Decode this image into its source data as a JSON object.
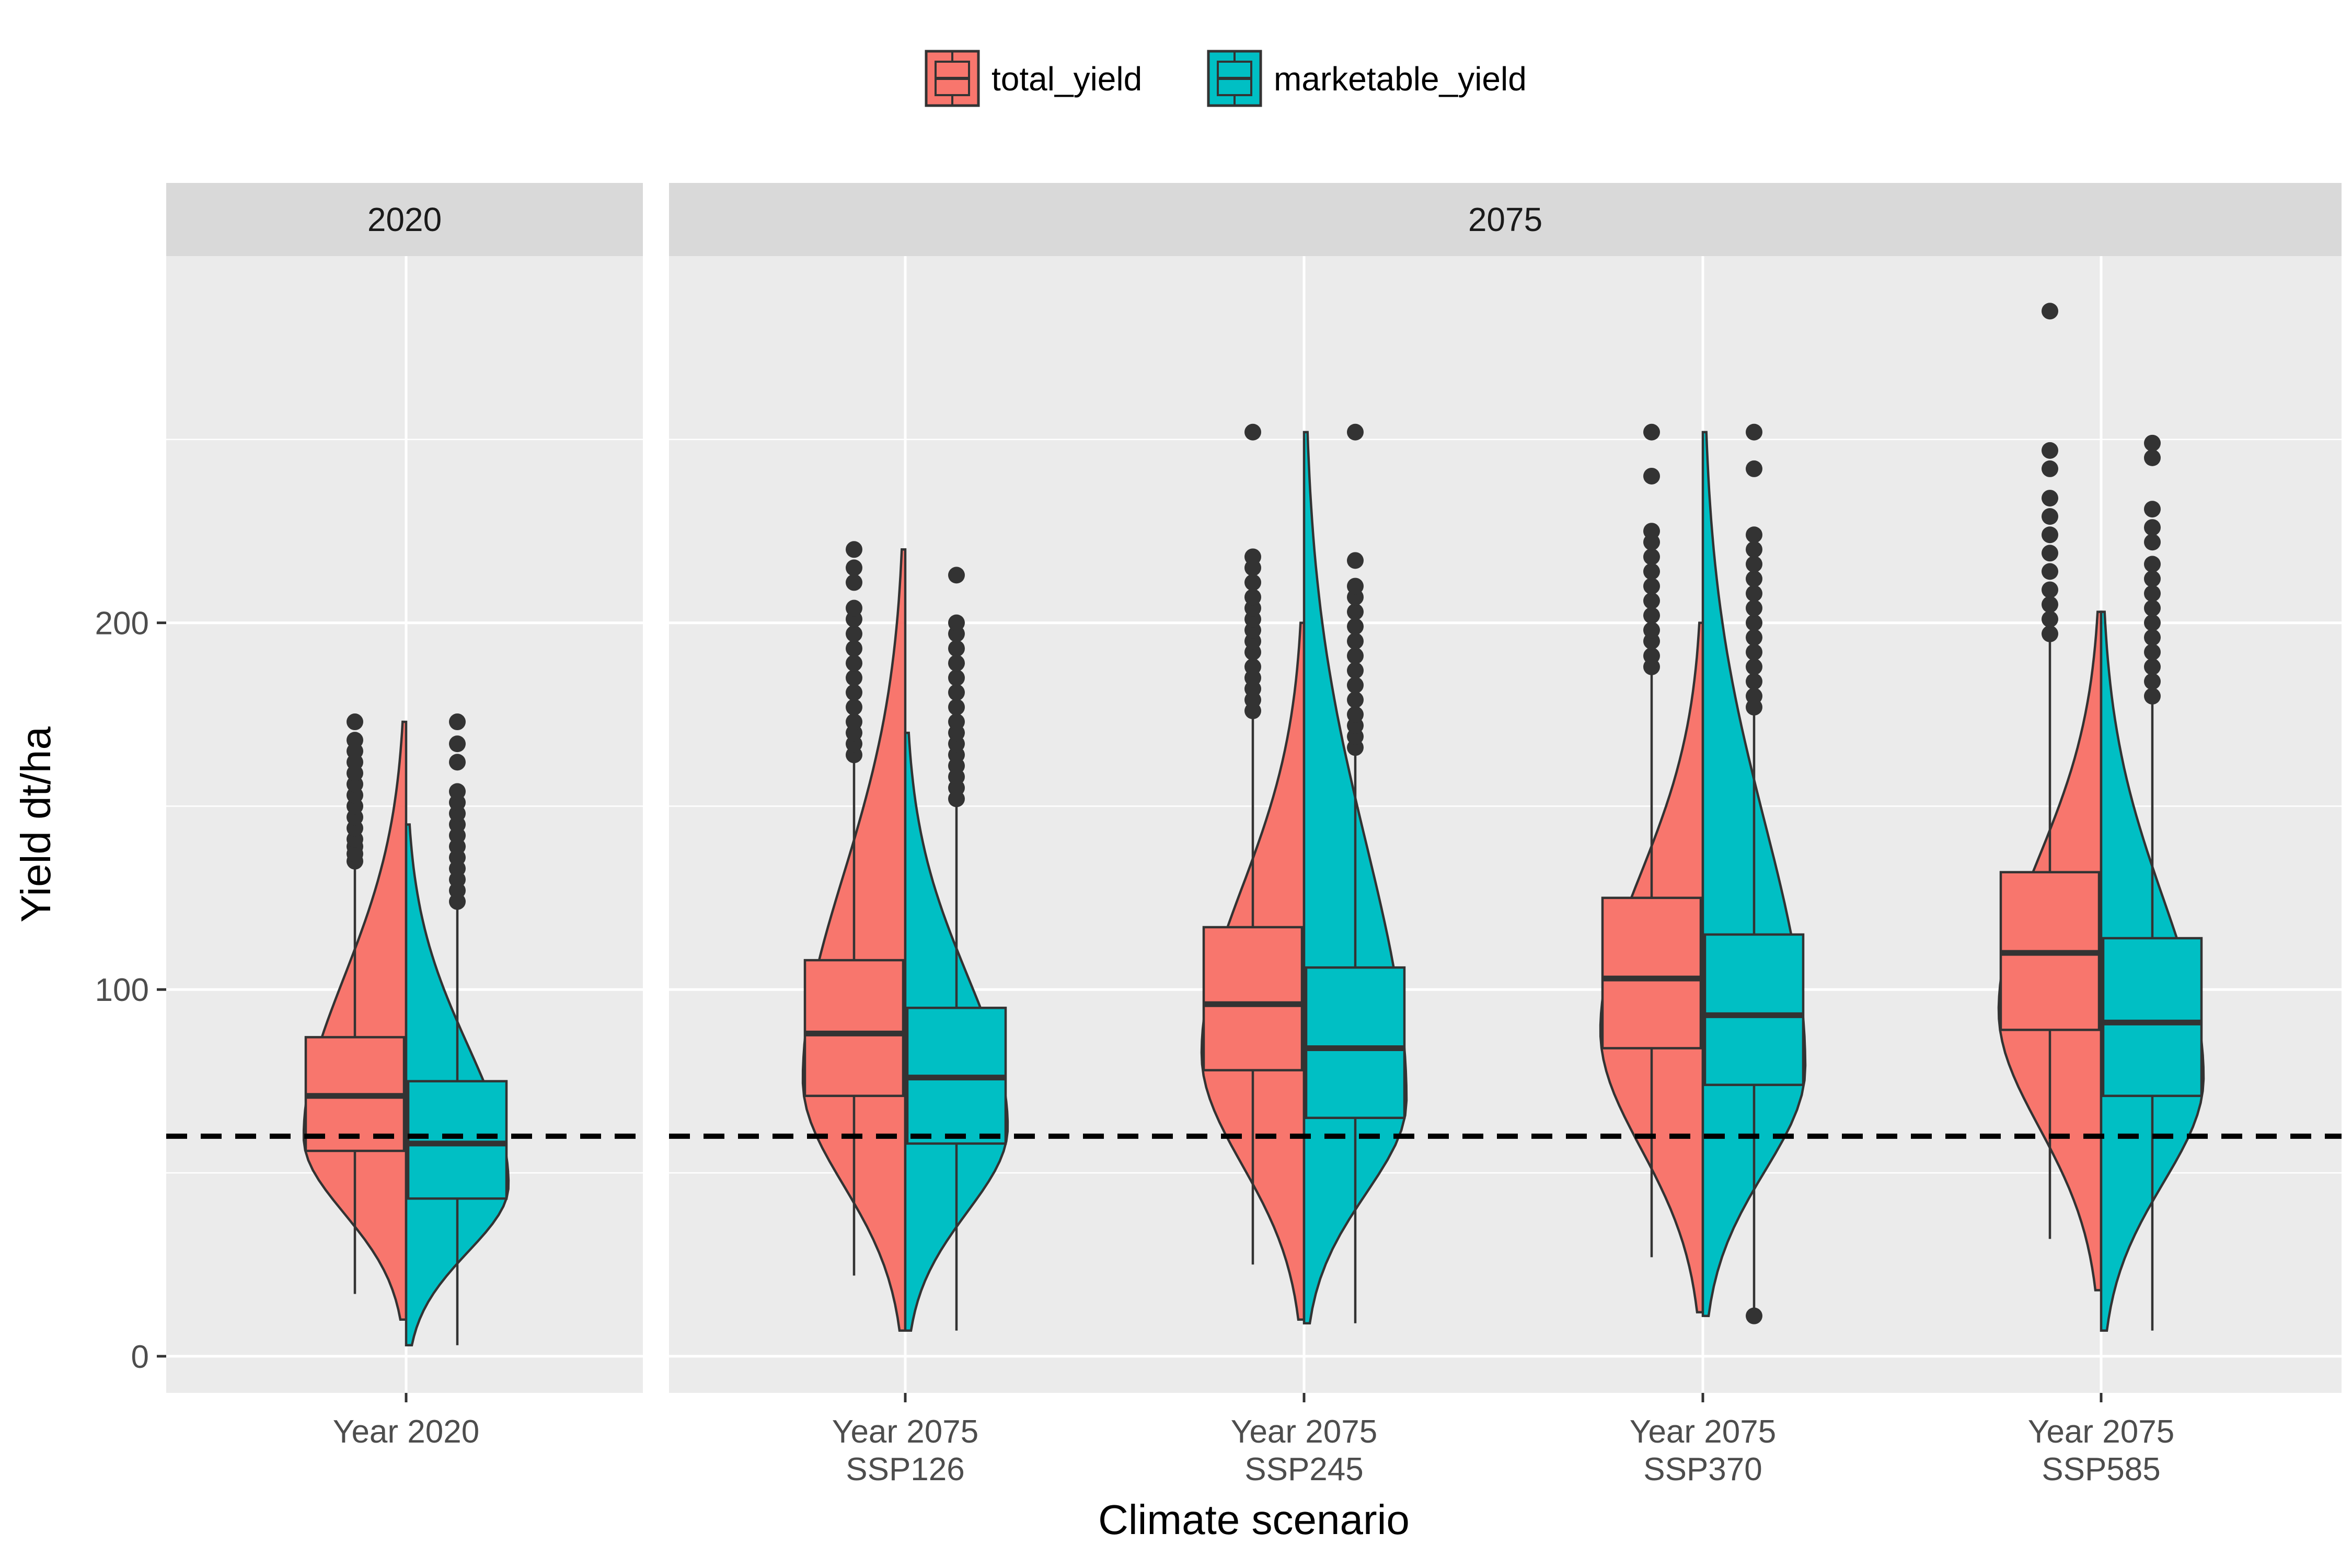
{
  "chart_data": {
    "type": "violin",
    "title": "",
    "xlabel": "Climate scenario",
    "ylabel": "Yield dt/ha",
    "ylim": [
      -10,
      300
    ],
    "yticks": [
      0,
      100,
      200
    ],
    "grid": true,
    "legend": {
      "position": "top",
      "entries": [
        {
          "name": "total_yield",
          "color": "#F8766D"
        },
        {
          "name": "marketable_yield",
          "color": "#00BFC4"
        }
      ]
    },
    "reference_line": {
      "y": 60,
      "style": "dashed",
      "color": "#000000"
    },
    "facets": [
      {
        "label": "2020",
        "categories": [
          "Year 2020"
        ]
      },
      {
        "label": "2075",
        "categories": [
          "Year 2075 SSP126",
          "Year 2075 SSP245",
          "Year 2075 SSP370",
          "Year 2075 SSP585"
        ]
      }
    ],
    "categories": [
      {
        "name": "Year 2020",
        "lines": [
          "Year 2020"
        ],
        "facet": 0
      },
      {
        "name": "Year 2075 SSP126",
        "lines": [
          "Year 2075",
          "SSP126"
        ],
        "facet": 1
      },
      {
        "name": "Year 2075 SSP245",
        "lines": [
          "Year 2075",
          "SSP245"
        ],
        "facet": 1
      },
      {
        "name": "Year 2075 SSP370",
        "lines": [
          "Year 2075",
          "SSP370"
        ],
        "facet": 1
      },
      {
        "name": "Year 2075 SSP585",
        "lines": [
          "Year 2075",
          "SSP585"
        ],
        "facet": 1
      }
    ],
    "series": [
      {
        "name": "total_yield",
        "color": "#F8766D",
        "groups": [
          {
            "min": 17,
            "q1": 56,
            "median": 71,
            "q3": 87,
            "max": 133,
            "vmin": 10,
            "vmax": 173,
            "outliers": [
              135,
              137,
              139,
              141,
              144,
              147,
              150,
              153,
              156,
              159,
              162,
              165,
              168,
              173
            ]
          },
          {
            "min": 22,
            "q1": 71,
            "median": 88,
            "q3": 108,
            "max": 162,
            "vmin": 7,
            "vmax": 220,
            "outliers": [
              164,
              167,
              170,
              173,
              177,
              181,
              185,
              189,
              193,
              197,
              201,
              204,
              211,
              215,
              220
            ]
          },
          {
            "min": 25,
            "q1": 78,
            "median": 96,
            "q3": 117,
            "max": 174,
            "vmin": 10,
            "vmax": 200,
            "outliers": [
              176,
              179,
              182,
              185,
              188,
              192,
              195,
              198,
              201,
              204,
              207,
              211,
              215,
              218,
              252
            ]
          },
          {
            "min": 27,
            "q1": 84,
            "median": 103,
            "q3": 125,
            "max": 186,
            "vmin": 12,
            "vmax": 200,
            "outliers": [
              188,
              191,
              195,
              198,
              202,
              206,
              210,
              214,
              218,
              222,
              225,
              240,
              252
            ]
          },
          {
            "min": 32,
            "q1": 89,
            "median": 110,
            "q3": 132,
            "max": 195,
            "vmin": 18,
            "vmax": 203,
            "outliers": [
              197,
              201,
              205,
              209,
              214,
              219,
              224,
              229,
              234,
              242,
              247,
              285
            ]
          }
        ]
      },
      {
        "name": "marketable_yield",
        "color": "#00BFC4",
        "groups": [
          {
            "min": 3,
            "q1": 43,
            "median": 58,
            "q3": 75,
            "max": 122,
            "vmin": 3,
            "vmax": 145,
            "outliers": [
              124,
              127,
              130,
              133,
              136,
              139,
              142,
              145,
              148,
              151,
              154,
              162,
              167,
              173
            ]
          },
          {
            "min": 7,
            "q1": 58,
            "median": 76,
            "q3": 95,
            "max": 150,
            "vmin": 7,
            "vmax": 170,
            "outliers": [
              152,
              155,
              158,
              161,
              164,
              167,
              170,
              173,
              177,
              181,
              185,
              189,
              193,
              197,
              200,
              213
            ]
          },
          {
            "min": 9,
            "q1": 65,
            "median": 84,
            "q3": 106,
            "max": 164,
            "vmin": 9,
            "vmax": 252,
            "outliers": [
              166,
              169,
              172,
              175,
              179,
              183,
              187,
              191,
              195,
              199,
              203,
              207,
              210,
              217,
              252
            ]
          },
          {
            "min": 11,
            "q1": 74,
            "median": 93,
            "q3": 115,
            "max": 175,
            "vmin": 11,
            "vmax": 252,
            "outliers": [
              11,
              177,
              180,
              184,
              188,
              192,
              196,
              200,
              204,
              208,
              212,
              216,
              220,
              224,
              242,
              252
            ]
          },
          {
            "min": 7,
            "q1": 71,
            "median": 91,
            "q3": 114,
            "max": 178,
            "vmin": 7,
            "vmax": 203,
            "outliers": [
              180,
              184,
              188,
              192,
              196,
              200,
              204,
              208,
              212,
              216,
              222,
              226,
              231,
              245,
              249
            ]
          }
        ]
      }
    ]
  }
}
